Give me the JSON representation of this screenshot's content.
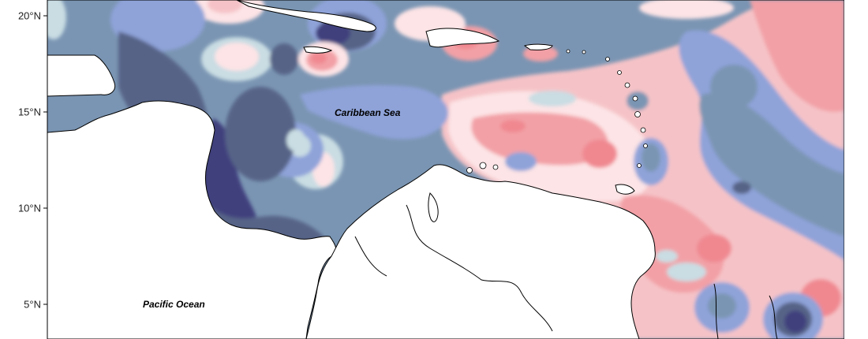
{
  "map": {
    "y_axis_labels": [
      "20°N",
      "15°N",
      "10°N",
      "5°N"
    ],
    "place_labels": {
      "caribbean_sea": "Caribbean Sea",
      "pacific_ocean": "Pacific Ocean"
    },
    "colors": {
      "deep_navy": "#3f3f7d",
      "dark_slate": "#566487",
      "slate_blue": "#7a95b3",
      "periwinkle": "#8fa3d9",
      "light_cyan": "#c9dde3",
      "very_light_pink": "#fde4e6",
      "light_pink": "#f5c3c7",
      "pink": "#f2a0a6",
      "salmon": "#f08890",
      "land": "#ffffff",
      "coastline": "#000000"
    }
  }
}
